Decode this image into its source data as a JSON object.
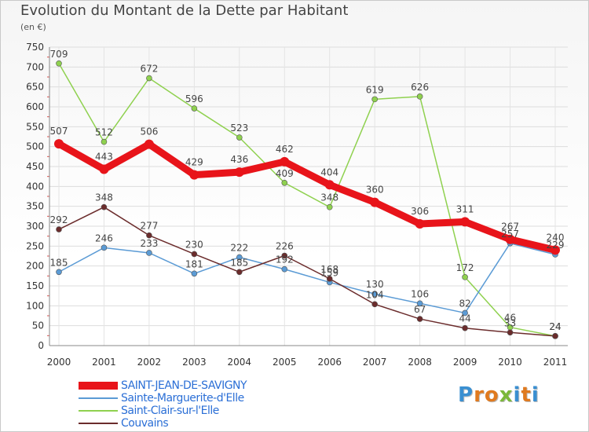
{
  "title": "Evolution du Montant de la Dette par Habitant",
  "unit_label": "(en €)",
  "logo": {
    "letters": [
      "P",
      "r",
      "o",
      "x",
      "i",
      "t",
      "i"
    ],
    "colors": [
      "#3a8fd1",
      "#e07a1f",
      "#e07a1f",
      "#7bb83a",
      "#3a8fd1",
      "#e07a1f",
      "#3a8fd1"
    ]
  },
  "chart_data": {
    "type": "line",
    "x": [
      "2000",
      "2001",
      "2002",
      "2003",
      "2004",
      "2005",
      "2006",
      "2007",
      "2008",
      "2009",
      "2010",
      "2011"
    ],
    "ylim": [
      0,
      750
    ],
    "yticks": [
      "0",
      "50",
      "100",
      "150",
      "200",
      "250",
      "300",
      "350",
      "400",
      "450",
      "500",
      "550",
      "600",
      "650",
      "700",
      "750"
    ],
    "grid": true,
    "legend_position": "bottom-left",
    "series": [
      {
        "name": "SAINT-JEAN-DE-SAVIGNY",
        "color": "#e8141a",
        "values": [
          507,
          443,
          506,
          429,
          436,
          462,
          404,
          360,
          306,
          311,
          267,
          240
        ],
        "labels": [
          "507",
          "443",
          "506",
          "429",
          "436",
          "462",
          "404",
          "360",
          "306",
          "311",
          "267",
          "240"
        ]
      },
      {
        "name": "Sainte-Marguerite-d'Elle",
        "color": "#5b9bd5",
        "values": [
          185,
          246,
          233,
          181,
          222,
          192,
          159,
          130,
          106,
          82,
          257,
          229
        ],
        "labels": [
          "185",
          "246",
          "233",
          "181",
          "222",
          "192",
          "159",
          "130",
          "106",
          "82",
          "257",
          "229"
        ]
      },
      {
        "name": "Saint-Clair-sur-l'Elle",
        "color": "#8fd14f",
        "values": [
          709,
          512,
          672,
          596,
          523,
          409,
          348,
          619,
          626,
          172,
          46,
          24
        ],
        "labels": [
          "709",
          "512",
          "672",
          "596",
          "523",
          "409",
          "348",
          "619",
          "626",
          "172",
          "46",
          "24"
        ]
      },
      {
        "name": "Couvains",
        "color": "#6b2c2c",
        "values": [
          292,
          348,
          277,
          230,
          185,
          226,
          168,
          104,
          67,
          44,
          33,
          24
        ],
        "labels": [
          "292",
          "348",
          "277",
          "230",
          "185",
          "226",
          "168",
          "104",
          "67",
          "44",
          "33",
          "24"
        ]
      }
    ]
  }
}
